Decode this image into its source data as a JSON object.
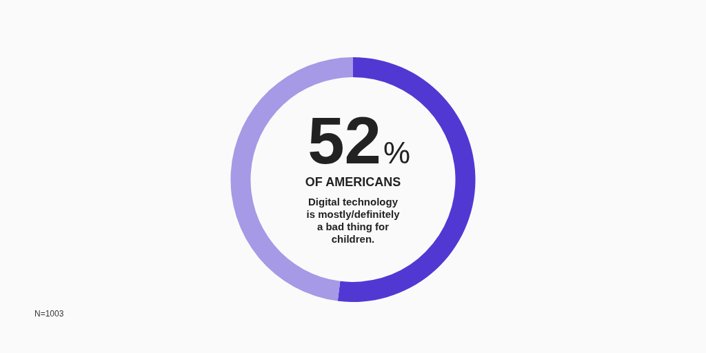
{
  "chart_data": {
    "type": "donut",
    "categories": [
      null,
      null
    ],
    "values": [
      52,
      48
    ],
    "colors": [
      "#5238d3",
      "#a699e6"
    ],
    "value_labels": [
      "52%",
      null
    ],
    "annotations": [
      "OF AMERICANS",
      "Digital technology is mostly/definitely a bad thing for children.",
      "N=1003"
    ]
  }
}
